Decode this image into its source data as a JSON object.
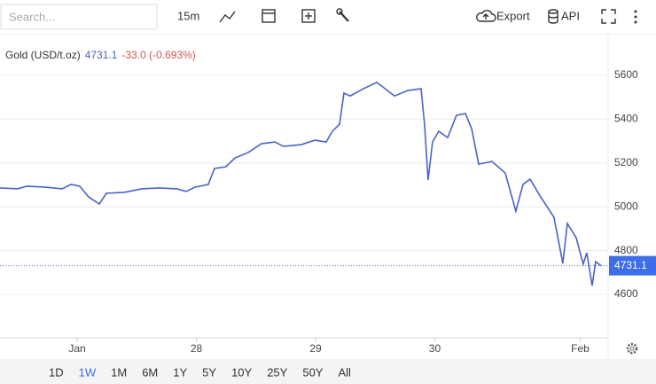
{
  "toolbar": {
    "search_placeholder": "Search...",
    "interval": "15m",
    "export": "Export",
    "api": "API"
  },
  "ranges": [
    "1D",
    "1W",
    "1M",
    "6M",
    "1Y",
    "5Y",
    "10Y",
    "25Y",
    "50Y",
    "All"
  ],
  "active_range": 1,
  "chart_data": {
    "type": "line",
    "legend_name": "Gold (USD/t.oz)",
    "price": 4731.1,
    "change_label": "-33.0 (-0.693%)",
    "x": [
      26.353,
      26.502,
      26.576,
      26.725,
      26.874,
      26.948,
      27.022,
      27.097,
      27.186,
      27.245,
      27.394,
      27.543,
      27.691,
      27.84,
      27.914,
      27.989,
      28.1,
      28.152,
      28.249,
      28.323,
      28.435,
      28.546,
      28.658,
      28.732,
      28.881,
      28.993,
      29.089,
      29.141,
      29.201,
      29.238,
      29.29,
      29.401,
      29.513,
      29.565,
      29.662,
      29.773,
      29.885,
      29.914,
      29.944,
      29.981,
      30.033,
      30.108,
      30.182,
      30.257,
      30.309,
      30.368,
      30.48,
      30.591,
      30.68,
      30.74,
      30.799,
      30.888,
      31.0,
      31.074,
      31.112,
      31.186,
      31.245,
      31.275,
      31.32,
      31.349,
      31.394
    ],
    "series": [
      {
        "name": "Gold (USD/t.oz)",
        "color": "#4a63c6",
        "values": [
          5086,
          5082,
          5094,
          5090,
          5082,
          5102,
          5094,
          5045,
          5013,
          5062,
          5066,
          5082,
          5086,
          5082,
          5070,
          5090,
          5102,
          5175,
          5183,
          5223,
          5248,
          5288,
          5296,
          5276,
          5284,
          5304,
          5296,
          5345,
          5377,
          5519,
          5506,
          5539,
          5568,
          5547,
          5506,
          5531,
          5539,
          5377,
          5122,
          5296,
          5345,
          5316,
          5418,
          5426,
          5357,
          5195,
          5207,
          5154,
          4980,
          5102,
          5126,
          5045,
          4952,
          4742,
          4924,
          4859,
          4738,
          4790,
          4640,
          4750,
          4731
        ]
      }
    ],
    "xlim": [
      26.353,
      31.454
    ],
    "xticks": [
      {
        "value": 27,
        "label": "Jan"
      },
      28,
      29,
      30,
      {
        "value": 31.22,
        "label": "Feb"
      }
    ],
    "ylim": [
      4400,
      5800
    ],
    "yticks": [
      4600,
      4800,
      5000,
      5200,
      5400,
      5600
    ],
    "grid": true
  }
}
